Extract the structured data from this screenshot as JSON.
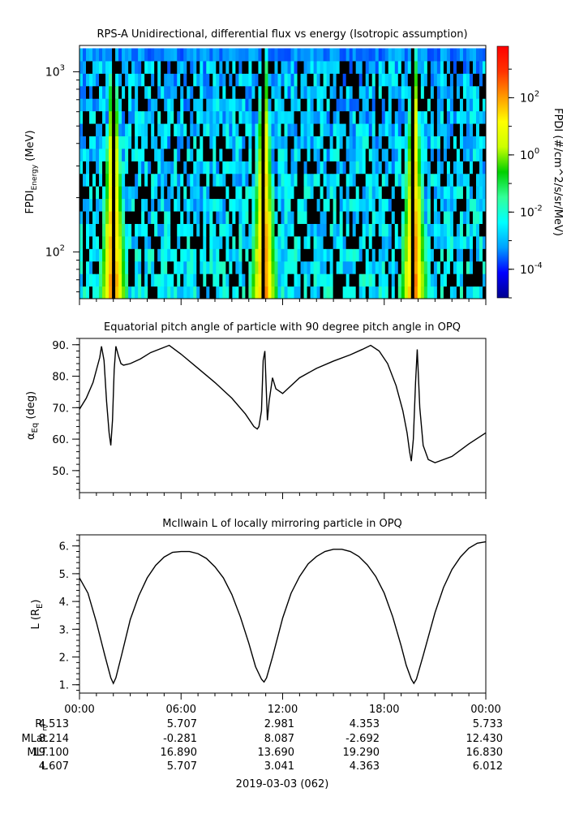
{
  "chart_data": [
    {
      "type": "heatmap",
      "title": "RPS-A Unidirectional, differential flux vs energy (Isotropic assumption)",
      "ylabel_main": "FPDI",
      "ylabel_sub": "Energy",
      "ylabel_unit": " (MeV)",
      "yscale": "log",
      "ylim": [
        55,
        1400
      ],
      "y_ticks": [
        {
          "value": 100,
          "base": "10",
          "exp": "2"
        },
        {
          "value": 1000,
          "base": "10",
          "exp": "3"
        }
      ],
      "colorbar_label": "FPDI (#/cm^2/s/sr/MeV)",
      "colorbar_range": [
        -5,
        3.8
      ],
      "colorbar_ticks": [
        {
          "value": -4,
          "base": "10",
          "exp": "-4"
        },
        {
          "value": -2,
          "base": "10",
          "exp": "-2"
        },
        {
          "value": 0,
          "base": "10",
          "exp": "0"
        },
        {
          "value": 2,
          "base": "10",
          "exp": "2"
        }
      ],
      "colormap": [
        "#00008f",
        "#0000ff",
        "#00a0ff",
        "#00ffff",
        "#33ff99",
        "#00d000",
        "#ccff00",
        "#ffff00",
        "#ff9900",
        "#ff3300",
        "#ff0000"
      ],
      "belt_passes_hours": [
        2.0,
        10.9,
        19.75
      ],
      "dropout_hours": [
        2.0,
        10.9,
        19.75
      ]
    },
    {
      "type": "line",
      "title": "Equatorial pitch angle of particle with 90 degree pitch angle in OPQ",
      "ylabel_main": "α",
      "ylabel_sub": "Eq",
      "ylabel_unit": " (deg)",
      "ylim": [
        43,
        92
      ],
      "y_ticks": [
        50,
        60,
        70,
        80,
        90
      ],
      "y_tick_labels": [
        "50.",
        "60.",
        "70.",
        "80.",
        "90."
      ],
      "x_hours": [
        0,
        0.4,
        0.8,
        1.2,
        1.3,
        1.45,
        1.6,
        1.75,
        1.85,
        1.95,
        2.05,
        2.15,
        2.3,
        2.45,
        2.6,
        3.0,
        3.6,
        4.2,
        5.3,
        6.0,
        7.0,
        8.0,
        9.0,
        9.8,
        10.3,
        10.5,
        10.6,
        10.75,
        10.85,
        10.95,
        11.1,
        11.2,
        11.4,
        11.6,
        12.0,
        13.0,
        14.0,
        15.0,
        16.0,
        16.7,
        17.2,
        17.7,
        18.2,
        18.7,
        19.1,
        19.35,
        19.5,
        19.6,
        19.72,
        19.85,
        19.95,
        20.1,
        20.3,
        20.6,
        21.0,
        22.0,
        23.0,
        24.0
      ],
      "values": [
        69.5,
        73,
        78,
        86,
        89.5,
        85,
        72,
        62,
        58,
        66,
        82,
        89.5,
        86.5,
        84,
        83.5,
        84,
        85.5,
        87.5,
        89.8,
        87,
        82.5,
        78,
        73,
        68,
        64,
        63.2,
        64,
        69,
        85,
        88,
        66,
        72,
        79.5,
        76,
        74.5,
        79.5,
        82.5,
        84.8,
        86.8,
        88.5,
        89.8,
        88,
        84,
        77,
        69,
        62,
        56,
        53,
        60,
        78,
        88.5,
        70,
        58,
        53.5,
        52.5,
        54.5,
        58.5,
        62
      ]
    },
    {
      "type": "line",
      "title": "McIlwain L of locally mirroring particle in OPQ",
      "ylabel_main": "L (R",
      "ylabel_sub": "E",
      "ylabel_unit": ")",
      "ylim": [
        0.7,
        6.4
      ],
      "y_ticks": [
        1,
        2,
        3,
        4,
        5,
        6
      ],
      "y_tick_labels": [
        "1.",
        "2.",
        "3.",
        "4.",
        "5.",
        "6."
      ],
      "x_hours": [
        0,
        0.5,
        1.0,
        1.5,
        1.85,
        2.0,
        2.15,
        2.5,
        3.0,
        3.5,
        4.0,
        4.5,
        5.0,
        5.5,
        6.0,
        6.5,
        7.0,
        7.5,
        8.0,
        8.5,
        9.0,
        9.5,
        10.0,
        10.4,
        10.75,
        10.9,
        11.05,
        11.4,
        12.0,
        12.5,
        13.0,
        13.5,
        14.0,
        14.5,
        15.0,
        15.5,
        16.0,
        16.5,
        17.0,
        17.5,
        18.0,
        18.5,
        19.0,
        19.3,
        19.6,
        19.75,
        19.9,
        20.3,
        21.0,
        21.5,
        22.0,
        22.5,
        23.0,
        23.5,
        24.0
      ],
      "values": [
        4.85,
        4.3,
        3.25,
        2.05,
        1.25,
        1.05,
        1.25,
        2.1,
        3.35,
        4.2,
        4.85,
        5.3,
        5.6,
        5.77,
        5.8,
        5.8,
        5.72,
        5.55,
        5.25,
        4.85,
        4.25,
        3.45,
        2.5,
        1.65,
        1.2,
        1.1,
        1.25,
        2.0,
        3.4,
        4.3,
        4.9,
        5.35,
        5.62,
        5.8,
        5.88,
        5.88,
        5.8,
        5.62,
        5.32,
        4.9,
        4.3,
        3.45,
        2.4,
        1.7,
        1.2,
        1.05,
        1.2,
        2.05,
        3.6,
        4.5,
        5.15,
        5.6,
        5.92,
        6.1,
        6.15
      ]
    }
  ],
  "time_axis": {
    "tick_labels": [
      "00:00",
      "06:00",
      "12:00",
      "18:00",
      "00:00"
    ],
    "major_hours": [
      0,
      6,
      12,
      18,
      24
    ],
    "date_label": "2019-03-03 (062)"
  },
  "ephemeris": {
    "rows": [
      {
        "label_main": "R",
        "label_sub": "E",
        "values": [
          "4.513",
          "5.707",
          "2.981",
          "4.353",
          "5.733"
        ]
      },
      {
        "label_main": "MLat",
        "label_sub": "",
        "values": [
          "8.214",
          "-0.281",
          "8.087",
          "-2.692",
          "12.430"
        ]
      },
      {
        "label_main": "MLT",
        "label_sub": "",
        "values": [
          "19.100",
          "16.890",
          "13.690",
          "19.290",
          "16.830"
        ]
      },
      {
        "label_main": "L",
        "label_sub": "",
        "values": [
          "4.607",
          "5.707",
          "3.041",
          "4.363",
          "6.012"
        ]
      }
    ]
  }
}
